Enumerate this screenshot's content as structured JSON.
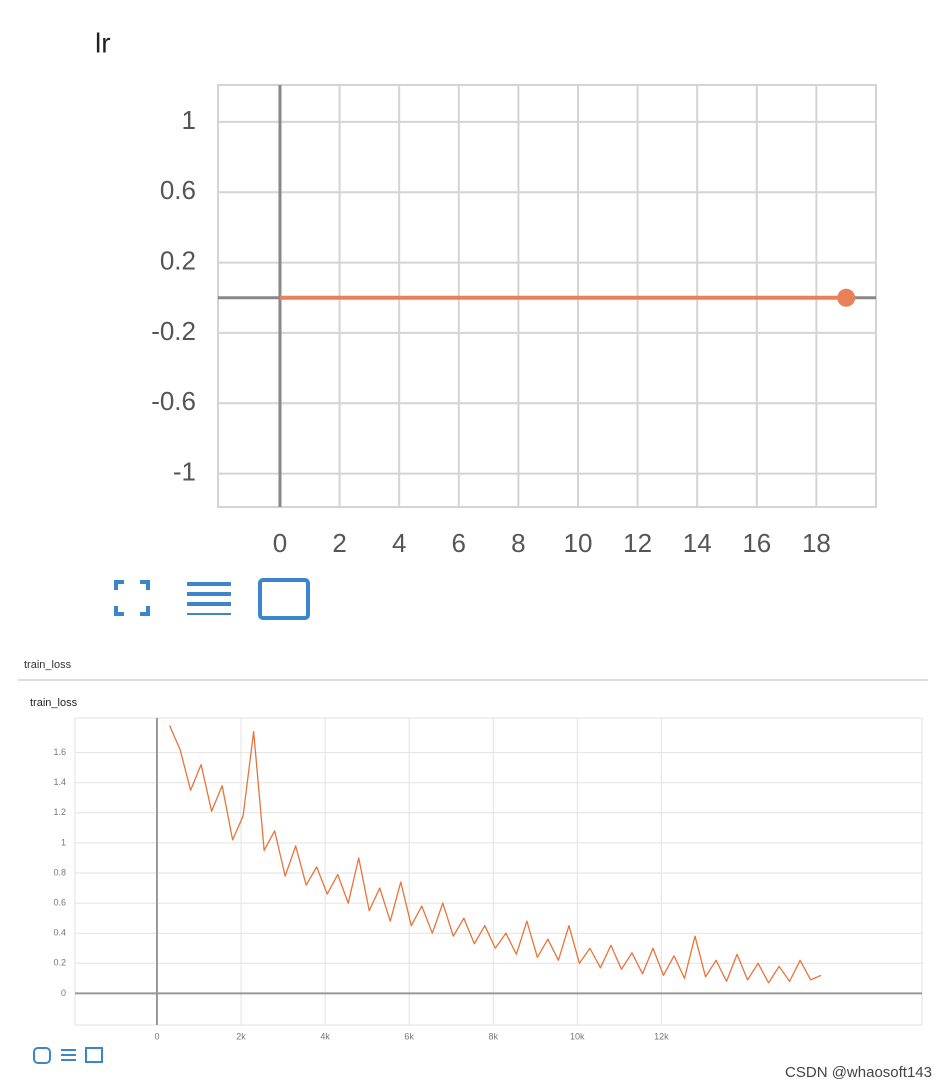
{
  "section": "train_loss",
  "watermark": "CSDN @whaosoft143",
  "chart_data": [
    {
      "type": "line",
      "title": "lr",
      "x": [
        0,
        1,
        2,
        3,
        4,
        5,
        6,
        7,
        8,
        9,
        10,
        11,
        12,
        13,
        14,
        15,
        16,
        17,
        18,
        19
      ],
      "values": [
        0,
        0,
        0,
        0,
        0,
        0,
        0,
        0,
        0,
        0,
        0,
        0,
        0,
        0,
        0,
        0,
        0,
        0,
        0,
        0
      ],
      "color": "#e8805a",
      "last_point_marker": true,
      "xlim": [
        -2.08,
        20.0
      ],
      "xticks": [
        0,
        2,
        4,
        6,
        8,
        10,
        12,
        14,
        16,
        18
      ],
      "ylim": [
        -1.19,
        1.21
      ],
      "yticks": [
        1,
        0.6,
        0.2,
        -0.2,
        -0.6,
        -1
      ],
      "grid": true
    },
    {
      "type": "line",
      "title": "train_loss",
      "x": [
        300,
        550,
        800,
        1050,
        1300,
        1550,
        1800,
        2050,
        2300,
        2550,
        2800,
        3050,
        3300,
        3550,
        3800,
        4050,
        4300,
        4550,
        4800,
        5050,
        5300,
        5550,
        5800,
        6050,
        6300,
        6550,
        6800,
        7050,
        7300,
        7550,
        7800,
        8050,
        8300,
        8550,
        8800,
        9050,
        9300,
        9550,
        9800,
        10050,
        10300,
        10550,
        10800,
        11050,
        11300,
        11550,
        11800,
        12050,
        12300,
        12550,
        12800,
        13050,
        13300,
        13550,
        13800,
        14050,
        14300,
        14550,
        14800,
        15050,
        15300,
        15550,
        15800
      ],
      "values": [
        1.78,
        1.62,
        1.35,
        1.52,
        1.21,
        1.38,
        1.02,
        1.18,
        1.74,
        0.95,
        1.08,
        0.78,
        0.98,
        0.72,
        0.84,
        0.66,
        0.79,
        0.6,
        0.9,
        0.55,
        0.7,
        0.48,
        0.74,
        0.45,
        0.58,
        0.4,
        0.6,
        0.38,
        0.5,
        0.33,
        0.45,
        0.3,
        0.4,
        0.26,
        0.48,
        0.24,
        0.36,
        0.22,
        0.45,
        0.2,
        0.3,
        0.17,
        0.32,
        0.16,
        0.27,
        0.13,
        0.3,
        0.12,
        0.25,
        0.1,
        0.38,
        0.11,
        0.22,
        0.08,
        0.26,
        0.09,
        0.2,
        0.07,
        0.18,
        0.08,
        0.22,
        0.09,
        0.12
      ],
      "color": "#e8743b",
      "last_point_marker": false,
      "xlim": [
        -1950,
        18200
      ],
      "xticks": [
        0,
        {
          "value": 2000,
          "label": "2k"
        },
        {
          "value": 4000,
          "label": "4k"
        },
        {
          "value": 6000,
          "label": "6k"
        },
        {
          "value": 8000,
          "label": "8k"
        },
        {
          "value": 10000,
          "label": "10k"
        },
        {
          "value": 12000,
          "label": "12k"
        }
      ],
      "ylim": [
        -0.21,
        1.83
      ],
      "yticks": [
        0,
        0.2,
        0.4,
        0.6,
        0.8,
        1,
        1.2,
        1.4,
        1.6
      ],
      "grid": true
    }
  ]
}
